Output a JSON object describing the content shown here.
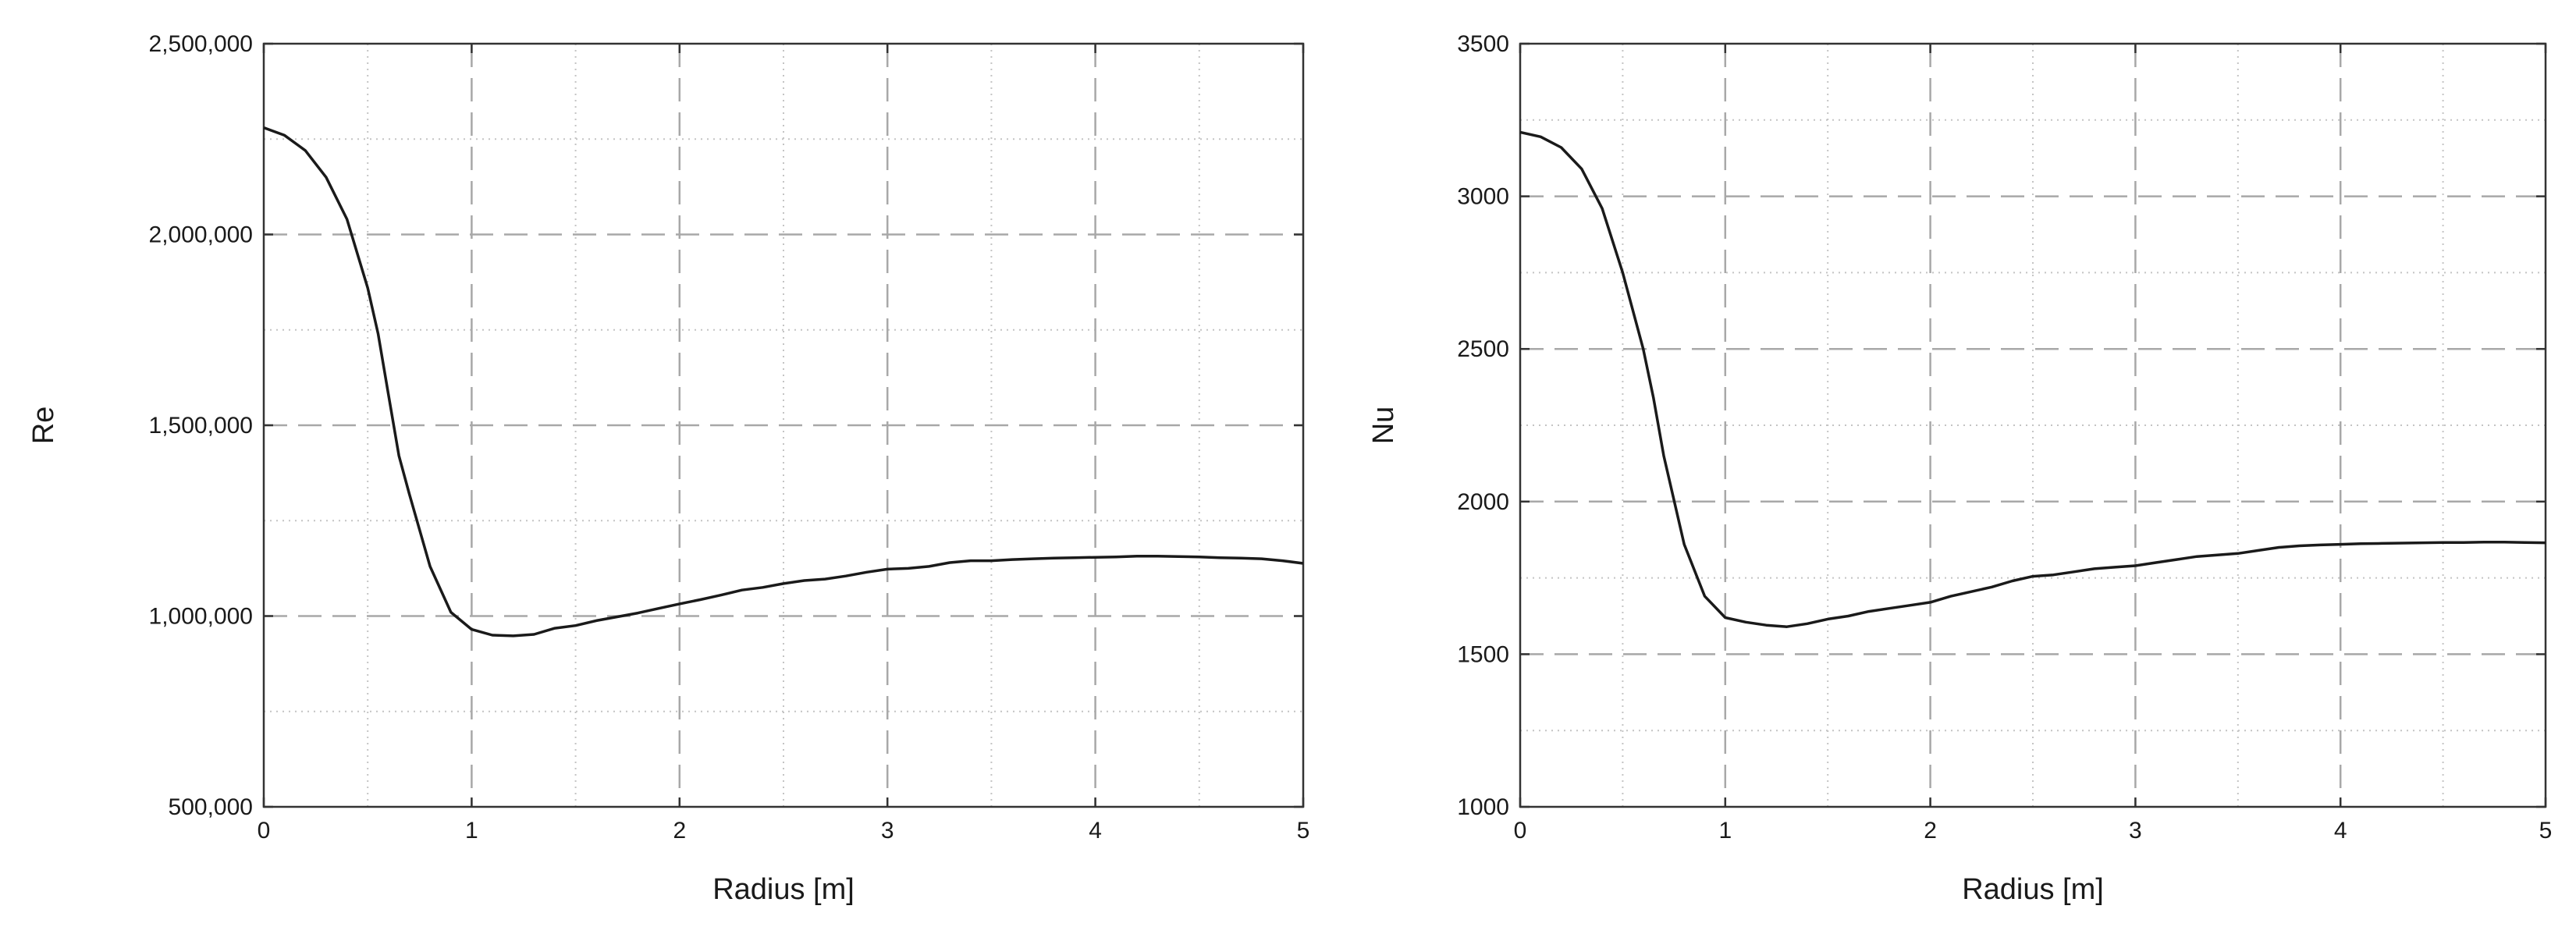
{
  "chart_data": [
    {
      "type": "line",
      "title": "",
      "xlabel": "Radius [m]",
      "ylabel": "Re",
      "xlim": [
        0,
        5
      ],
      "ylim": [
        500000,
        2500000
      ],
      "x_ticks": [
        0,
        1,
        2,
        3,
        4,
        5
      ],
      "x_tick_labels": [
        "0",
        "1",
        "2",
        "3",
        "4",
        "5"
      ],
      "y_ticks": [
        500000,
        1000000,
        1500000,
        2000000,
        2500000
      ],
      "y_tick_labels": [
        "500,000",
        "1,000,000",
        "1,500,000",
        "2,000,000",
        "2,500,000"
      ],
      "grid": true,
      "legend": "none",
      "series": [
        {
          "x": [
            0,
            0.1,
            0.2,
            0.3,
            0.4,
            0.5,
            0.55,
            0.6,
            0.65,
            0.7,
            0.8,
            0.9,
            1.0,
            1.1,
            1.2,
            1.3,
            1.4,
            1.5,
            1.6,
            1.7,
            1.8,
            1.9,
            2.0,
            2.1,
            2.2,
            2.3,
            2.4,
            2.5,
            2.6,
            2.7,
            2.8,
            2.9,
            3.0,
            3.1,
            3.2,
            3.3,
            3.4,
            3.5,
            3.6,
            3.7,
            3.8,
            3.9,
            4.0,
            4.1,
            4.2,
            4.3,
            4.4,
            4.5,
            4.6,
            4.7,
            4.8,
            4.9,
            5.0
          ],
          "values": [
            2280000,
            2260000,
            2220000,
            2150000,
            2040000,
            1860000,
            1740000,
            1580000,
            1420000,
            1320000,
            1130000,
            1010000,
            965000,
            950000,
            948000,
            952000,
            968000,
            975000,
            988000,
            998000,
            1008000,
            1020000,
            1032000,
            1043000,
            1055000,
            1068000,
            1075000,
            1085000,
            1093000,
            1097000,
            1105000,
            1115000,
            1123000,
            1125000,
            1130000,
            1140000,
            1145000,
            1145000,
            1148000,
            1150000,
            1152000,
            1153000,
            1154000,
            1155000,
            1157000,
            1157000,
            1156000,
            1155000,
            1153000,
            1152000,
            1150000,
            1145000,
            1138000
          ]
        }
      ]
    },
    {
      "type": "line",
      "title": "",
      "xlabel": "Radius [m]",
      "ylabel": "Nu",
      "xlim": [
        0,
        5
      ],
      "ylim": [
        1000,
        3500
      ],
      "x_ticks": [
        0,
        1,
        2,
        3,
        4,
        5
      ],
      "x_tick_labels": [
        "0",
        "1",
        "2",
        "3",
        "4",
        "5"
      ],
      "y_ticks": [
        1000,
        1500,
        2000,
        2500,
        3000,
        3500
      ],
      "y_tick_labels": [
        "1000",
        "1500",
        "2000",
        "2500",
        "3000",
        "3500"
      ],
      "grid": true,
      "legend": "none",
      "series": [
        {
          "x": [
            0,
            0.1,
            0.2,
            0.3,
            0.4,
            0.5,
            0.6,
            0.65,
            0.7,
            0.8,
            0.9,
            1.0,
            1.1,
            1.2,
            1.3,
            1.4,
            1.5,
            1.6,
            1.7,
            1.8,
            1.9,
            2.0,
            2.1,
            2.2,
            2.3,
            2.4,
            2.5,
            2.6,
            2.7,
            2.8,
            2.9,
            3.0,
            3.1,
            3.2,
            3.3,
            3.4,
            3.5,
            3.6,
            3.7,
            3.8,
            3.9,
            4.0,
            4.1,
            4.2,
            4.3,
            4.4,
            4.5,
            4.6,
            4.7,
            4.8,
            4.9,
            5.0
          ],
          "values": [
            3210,
            3195,
            3160,
            3090,
            2960,
            2750,
            2500,
            2340,
            2150,
            1860,
            1690,
            1620,
            1605,
            1595,
            1590,
            1600,
            1615,
            1625,
            1640,
            1650,
            1660,
            1670,
            1690,
            1705,
            1720,
            1740,
            1755,
            1760,
            1770,
            1780,
            1785,
            1790,
            1800,
            1810,
            1820,
            1825,
            1830,
            1840,
            1850,
            1855,
            1858,
            1860,
            1862,
            1863,
            1864,
            1865,
            1866,
            1866,
            1867,
            1867,
            1866,
            1865
          ]
        }
      ]
    }
  ]
}
